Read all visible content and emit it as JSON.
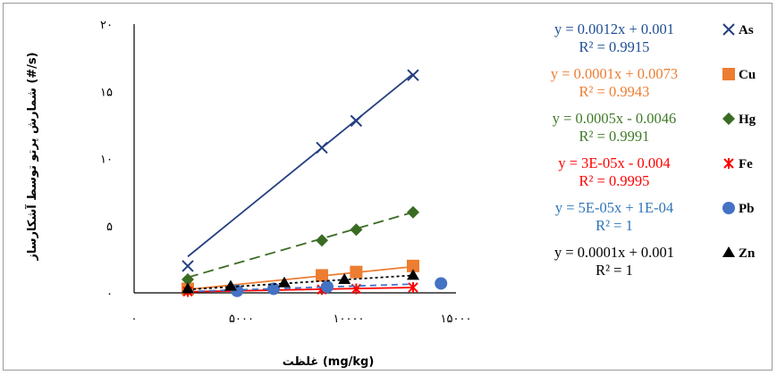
{
  "chart_data": {
    "type": "scatter",
    "title": "",
    "xlabel": "غلظت (mg/kg)",
    "ylabel": "شمارش پرتو توسط آشکارساز (#/s)",
    "xlim": [
      0,
      15000
    ],
    "ylim": [
      0,
      20
    ],
    "x_ticks": [
      {
        "value": 0,
        "label": "۰"
      },
      {
        "value": 5000,
        "label": "۵۰۰۰"
      },
      {
        "value": 10000,
        "label": "۱۰۰۰۰"
      },
      {
        "value": 15000,
        "label": "۱۵۰۰۰"
      }
    ],
    "y_ticks": [
      {
        "value": 0,
        "label": "۰"
      },
      {
        "value": 5,
        "label": "۵"
      },
      {
        "value": 10,
        "label": "۱۰"
      },
      {
        "value": 15,
        "label": "۱۵"
      },
      {
        "value": 20,
        "label": "۲۰"
      }
    ],
    "grid": false,
    "legend_position": "right",
    "series": [
      {
        "name": "As",
        "color": "#243F80",
        "marker": "x",
        "dash": "solid",
        "x": [
          2500,
          8750,
          10350,
          13000
        ],
        "y": [
          2.0,
          10.8,
          12.8,
          16.2
        ],
        "trendline": {
          "x": [
            2500,
            13000
          ],
          "y": [
            2.7,
            16.3
          ]
        },
        "equation": "y = 0.0012x + 0.001",
        "r2": "R² = 0.9915",
        "eq_color": "#1F4E96"
      },
      {
        "name": "Cu",
        "color": "#ED7D31",
        "marker": "square",
        "dash": "solid",
        "x": [
          2500,
          8750,
          10350,
          13000
        ],
        "y": [
          0.3,
          1.3,
          1.55,
          2.0
        ],
        "trendline": {
          "x": [
            2500,
            13000
          ],
          "y": [
            0.25,
            1.95
          ]
        },
        "equation": "y = 0.0001x + 0.0073",
        "r2": "R² = 0.9943",
        "eq_color": "#ED7D31"
      },
      {
        "name": "Hg",
        "color": "#3A6B23",
        "marker": "diamond",
        "dash": "long-dash",
        "x": [
          2500,
          8750,
          10350,
          13000
        ],
        "y": [
          1.0,
          3.9,
          4.7,
          6.0
        ],
        "trendline": {
          "x": [
            2500,
            13000
          ],
          "y": [
            1.15,
            6.0
          ]
        },
        "equation": "y = 0.0005x - 0.0046",
        "r2": "R² = 0.9991",
        "eq_color": "#3F7A28"
      },
      {
        "name": "Fe",
        "color": "#FF0000",
        "marker": "star",
        "dash": "solid",
        "x": [
          2500,
          8750,
          10350,
          13000
        ],
        "y": [
          0.1,
          0.25,
          0.3,
          0.4
        ],
        "trendline": {
          "x": [
            2500,
            13000
          ],
          "y": [
            0.08,
            0.4
          ]
        },
        "equation": "y = 3E-05x - 0.004",
        "r2": "R² = 0.9995",
        "eq_color": "#FF0000"
      },
      {
        "name": "Pb",
        "color": "#4472C4",
        "marker": "circle",
        "dash": "dash",
        "x": [
          4800,
          6500,
          9000,
          14300
        ],
        "y": [
          0.15,
          0.3,
          0.45,
          0.7
        ],
        "trendline": {
          "x": [
            2500,
            13000
          ],
          "y": [
            0.1,
            0.65
          ]
        },
        "equation": "y = 5E-05x + 1E-04",
        "r2": "R² = 1",
        "eq_color": "#2E75B6"
      },
      {
        "name": "Zn",
        "color": "#000000",
        "marker": "triangle",
        "dash": "dot",
        "x": [
          2500,
          4500,
          7000,
          9800,
          13000
        ],
        "y": [
          0.3,
          0.5,
          0.75,
          1.0,
          1.3
        ],
        "trendline": {
          "x": [
            2500,
            13000
          ],
          "y": [
            0.25,
            1.3
          ]
        },
        "equation": "y = 0.0001x + 0.001",
        "r2": "R² = 1",
        "eq_color": "#000000"
      }
    ]
  }
}
